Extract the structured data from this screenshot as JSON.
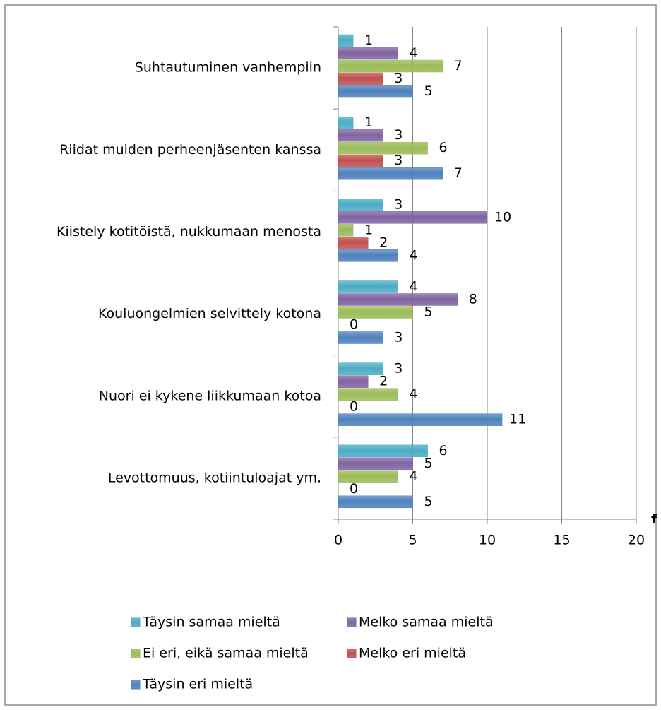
{
  "chart_data": {
    "type": "bar",
    "orientation": "horizontal",
    "x_label": "f",
    "categories": [
      "Suhtautuminen vanhempiin",
      "Riidat muiden perheenjäsenten kanssa",
      "Kiistely kotitöistä, nukkumaan menosta",
      "Kouluongelmien selvittely kotona",
      "Nuori ei kykene liikkumaan kotoa",
      "Levottomuus, kotiintuloajat ym."
    ],
    "series": [
      {
        "name": "Täysin samaa mieltä",
        "color": "#4bacc6",
        "values": [
          1,
          1,
          3,
          4,
          3,
          6
        ]
      },
      {
        "name": "Melko samaa mieltä",
        "color": "#8064a2",
        "values": [
          4,
          3,
          10,
          8,
          2,
          5
        ]
      },
      {
        "name": "Ei eri, eikä samaa mieltä",
        "color": "#9bbb59",
        "values": [
          7,
          6,
          1,
          5,
          4,
          4
        ]
      },
      {
        "name": "Melko eri mieltä",
        "color": "#c0504d",
        "values": [
          3,
          3,
          2,
          0,
          0,
          0
        ]
      },
      {
        "name": "Täysin eri mieltä",
        "color": "#4f81bd",
        "values": [
          5,
          7,
          4,
          3,
          11,
          5
        ]
      }
    ],
    "xlim": [
      0,
      20
    ],
    "xticks": [
      0,
      5,
      10,
      15,
      20
    ],
    "grid": true,
    "legend": "bottom"
  }
}
